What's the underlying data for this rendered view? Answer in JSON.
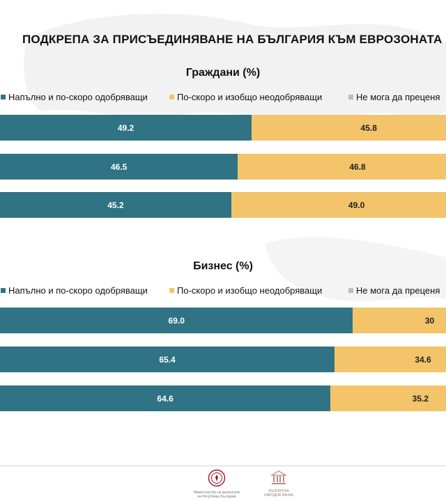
{
  "title": "ПОДКРЕПА ЗА ПРИСЪЕДИНЯВАНЕ НА БЪЛГАРИЯ КЪМ ЕВРОЗОНАТА",
  "colors": {
    "approve": "#2f7384",
    "disapprove": "#f4c46a",
    "unsure": "#bcbcbc"
  },
  "chart_data": [
    {
      "type": "bar",
      "orientation": "horizontal-stacked",
      "title": "Граждани (%)",
      "legend": [
        "Напълно и по-скоро одобряващи",
        "По-скоро и изобщо неодобряващи",
        "Не мога да преценя"
      ],
      "series": [
        {
          "name": "Напълно и по-скоро одобряващи",
          "values": [
            49.2,
            46.5,
            45.2
          ]
        },
        {
          "name": "По-скоро и изобщо неодобряващи",
          "values": [
            45.8,
            46.8,
            49.0
          ]
        }
      ],
      "labels": {
        "approve": [
          "49.2",
          "46.5",
          "45.2"
        ],
        "disapprove": [
          "45.8",
          "46.8",
          "49.0"
        ]
      },
      "xlim": [
        0,
        100
      ]
    },
    {
      "type": "bar",
      "orientation": "horizontal-stacked",
      "title": "Бизнес (%)",
      "legend": [
        "Напълно и по-скоро одобряващи",
        "По-скоро и изобщо неодобряващи",
        "Не мога да преценя"
      ],
      "series": [
        {
          "name": "Напълно и по-скоро одобряващи",
          "values": [
            69.0,
            65.4,
            64.6
          ]
        },
        {
          "name": "По-скоро и изобщо неодобряващи",
          "values": [
            30.0,
            34.6,
            35.2
          ]
        }
      ],
      "labels": {
        "approve": [
          "69.0",
          "65.4",
          "64.6"
        ],
        "disapprove": [
          "30",
          "34.6",
          "35.2"
        ]
      },
      "xlim": [
        0,
        100
      ]
    }
  ],
  "footer": {
    "logo1_caption": [
      "Министерство на финансите",
      "на Република България"
    ],
    "logo2_caption": [
      "БЪЛГАРСКА",
      "НАРОДНА БАНКА"
    ]
  }
}
